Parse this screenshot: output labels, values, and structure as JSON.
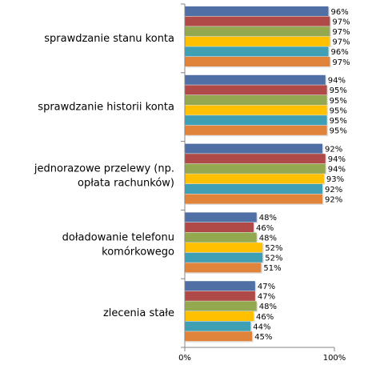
{
  "chart_data": {
    "type": "bar",
    "orientation": "horizontal",
    "categories": [
      "sprawdzanie stanu konta",
      "sprawdzanie historii konta",
      "jednorazowe przelewy (np. opłata rachunków)",
      "doładowanie telefonu komórkowego",
      "zlecenia stałe"
    ],
    "category_lines": [
      [
        "sprawdzanie stanu konta"
      ],
      [
        "sprawdzanie historii konta"
      ],
      [
        "jednorazowe przelewy (np.",
        "opłata rachunków)"
      ],
      [
        "doładowanie telefonu",
        "komórkowego"
      ],
      [
        "zlecenia stałe"
      ]
    ],
    "series": [
      {
        "values": [
          96,
          94,
          92,
          48,
          47
        ],
        "color": "#4F6FA5"
      },
      {
        "values": [
          97,
          95,
          94,
          46,
          47
        ],
        "color": "#B04A48"
      },
      {
        "values": [
          97,
          95,
          94,
          48,
          48
        ],
        "color": "#93A84F"
      },
      {
        "values": [
          97,
          95,
          93,
          52,
          46
        ],
        "color": "#FFC000"
      },
      {
        "values": [
          96,
          95,
          92,
          52,
          44
        ],
        "color": "#3F9FB5"
      },
      {
        "values": [
          97,
          95,
          92,
          51,
          45
        ],
        "color": "#E0843C"
      }
    ],
    "value_suffix": "%",
    "xlim": [
      0,
      100
    ],
    "x_ticks": [
      "0%",
      "100%"
    ],
    "grid": false,
    "legend": "none"
  }
}
